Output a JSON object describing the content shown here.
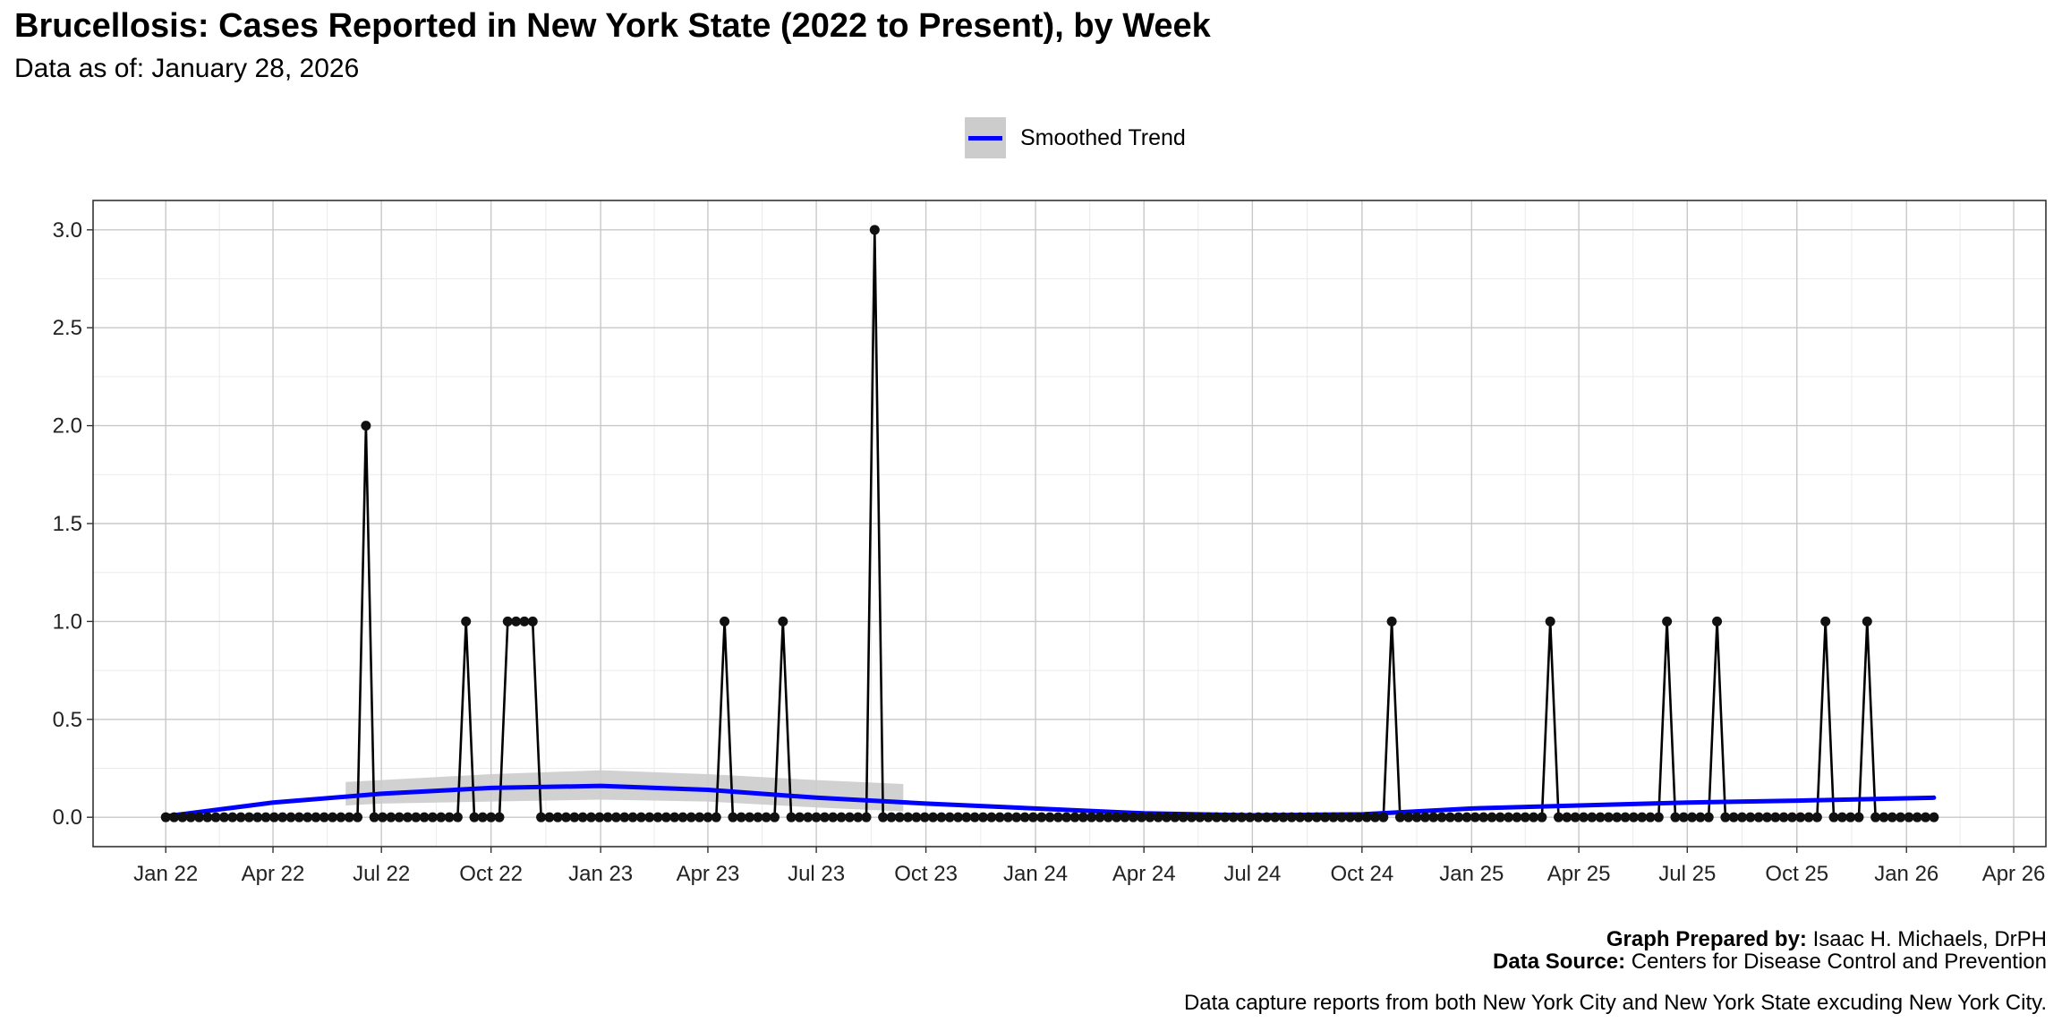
{
  "title": "Brucellosis: Cases Reported in New York State (2022 to Present), by Week",
  "subtitle": "Data as of: January 28, 2026",
  "legend": {
    "label": "Smoothed Trend",
    "line_color": "#0000ff",
    "band_color": "#cccccc"
  },
  "footer": {
    "prepared_label": "Graph Prepared by:",
    "prepared_value": "Isaac H. Michaels, DrPH",
    "source_label": "Data Source:",
    "source_value": "Centers for Disease Control and Prevention",
    "note": "Data capture reports from both New York City and New York State excuding New York City."
  },
  "chart_data": {
    "type": "line",
    "title": "Brucellosis: Cases Reported in New York State (2022 to Present), by Week",
    "subtitle": "Data as of: January 28, 2026",
    "xlabel": "",
    "ylabel": "",
    "x_start": "2022-01-01",
    "x_interval": "1 week",
    "x_end": "2026-01-24",
    "xlim": [
      "2021-11-01",
      "2026-04-28"
    ],
    "ylim": [
      -0.15,
      3.15
    ],
    "x_ticks": [
      "Jan 22",
      "Apr 22",
      "Jul 22",
      "Oct 22",
      "Jan 23",
      "Apr 23",
      "Jul 23",
      "Oct 23",
      "Jan 24",
      "Apr 24",
      "Jul 24",
      "Oct 24",
      "Jan 25",
      "Apr 25",
      "Jul 25",
      "Oct 25",
      "Jan 26",
      "Apr 26"
    ],
    "x_tick_dates": [
      "2022-01-01",
      "2022-04-01",
      "2022-07-01",
      "2022-10-01",
      "2023-01-01",
      "2023-04-01",
      "2023-07-01",
      "2023-10-01",
      "2024-01-01",
      "2024-04-01",
      "2024-07-01",
      "2024-10-01",
      "2025-01-01",
      "2025-04-01",
      "2025-07-01",
      "2025-10-01",
      "2026-01-01",
      "2026-04-01"
    ],
    "y_ticks": [
      "0.0",
      "0.5",
      "1.0",
      "1.5",
      "2.0",
      "2.5",
      "3.0"
    ],
    "y_tick_values": [
      0,
      0.5,
      1.0,
      1.5,
      2.0,
      2.5,
      3.0
    ],
    "grid": true,
    "legend_position": "top-center",
    "series": [
      {
        "name": "Cases",
        "color": "#000000",
        "markers": true,
        "nonzero_weeks": [
          {
            "date": "2022-06-18",
            "value": 2
          },
          {
            "date": "2022-09-10",
            "value": 1
          },
          {
            "date": "2022-10-15",
            "value": 1
          },
          {
            "date": "2022-10-22",
            "value": 1
          },
          {
            "date": "2022-10-29",
            "value": 1
          },
          {
            "date": "2022-11-05",
            "value": 1
          },
          {
            "date": "2023-04-15",
            "value": 1
          },
          {
            "date": "2023-06-03",
            "value": 1
          },
          {
            "date": "2023-08-19",
            "value": 3
          },
          {
            "date": "2024-10-26",
            "value": 1
          },
          {
            "date": "2025-03-08",
            "value": 1
          },
          {
            "date": "2025-06-14",
            "value": 1
          },
          {
            "date": "2025-07-26",
            "value": 1
          },
          {
            "date": "2025-10-25",
            "value": 1
          },
          {
            "date": "2025-11-29",
            "value": 1
          }
        ]
      },
      {
        "name": "Smoothed Trend",
        "color": "#0000ff",
        "x": [
          "2022-01-01",
          "2022-04-01",
          "2022-07-01",
          "2022-10-01",
          "2023-01-01",
          "2023-04-01",
          "2023-07-01",
          "2023-10-01",
          "2024-01-01",
          "2024-04-01",
          "2024-07-01",
          "2024-10-01",
          "2025-01-01",
          "2025-04-01",
          "2025-07-01",
          "2025-10-01",
          "2026-01-24"
        ],
        "values": [
          0.005,
          0.075,
          0.12,
          0.15,
          0.16,
          0.14,
          0.1,
          0.07,
          0.045,
          0.02,
          0.01,
          0.015,
          0.045,
          0.06,
          0.075,
          0.085,
          0.1
        ],
        "band": {
          "x": [
            "2022-06-01",
            "2022-07-01",
            "2022-10-01",
            "2023-01-01",
            "2023-04-01",
            "2023-07-01",
            "2023-09-12"
          ],
          "lower": [
            0.06,
            0.07,
            0.08,
            0.09,
            0.08,
            0.05,
            0.03
          ],
          "upper": [
            0.18,
            0.19,
            0.22,
            0.24,
            0.22,
            0.19,
            0.17
          ]
        }
      }
    ]
  }
}
